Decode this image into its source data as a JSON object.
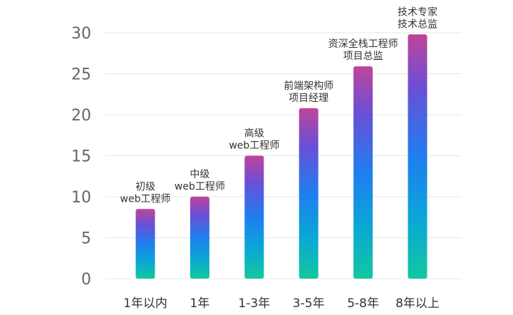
{
  "chart_data": {
    "type": "bar",
    "title": "",
    "xlabel": "",
    "ylabel": "",
    "categories": [
      "1年以内",
      "1年",
      "1-3年",
      "3-5年",
      "5-8年",
      "8年以上"
    ],
    "values": [
      8.5,
      10,
      15,
      20.8,
      25.9,
      29.8
    ],
    "bar_labels": [
      [
        "初级",
        "web工程师"
      ],
      [
        "中级",
        "web工程师"
      ],
      [
        "高级",
        "web工程师"
      ],
      [
        "前端架构师",
        "项目经理"
      ],
      [
        "资深全栈工程师",
        "项目总监"
      ],
      [
        "技术专家",
        "技术总监"
      ]
    ],
    "ylim": [
      0,
      30
    ],
    "yticks": [
      0,
      5,
      10,
      15,
      20,
      25,
      30
    ],
    "grid": true,
    "legend": "none",
    "colors": {
      "gradient_top": "#c0449a",
      "gradient_upper_mid": "#6a4fd6",
      "gradient_mid": "#1f7ef0",
      "gradient_lower_mid": "#0aa6d6",
      "gradient_bottom": "#12c8a0",
      "grid": "#e4e7ec",
      "tick_text": "#666666",
      "label_text": "#333333"
    }
  }
}
